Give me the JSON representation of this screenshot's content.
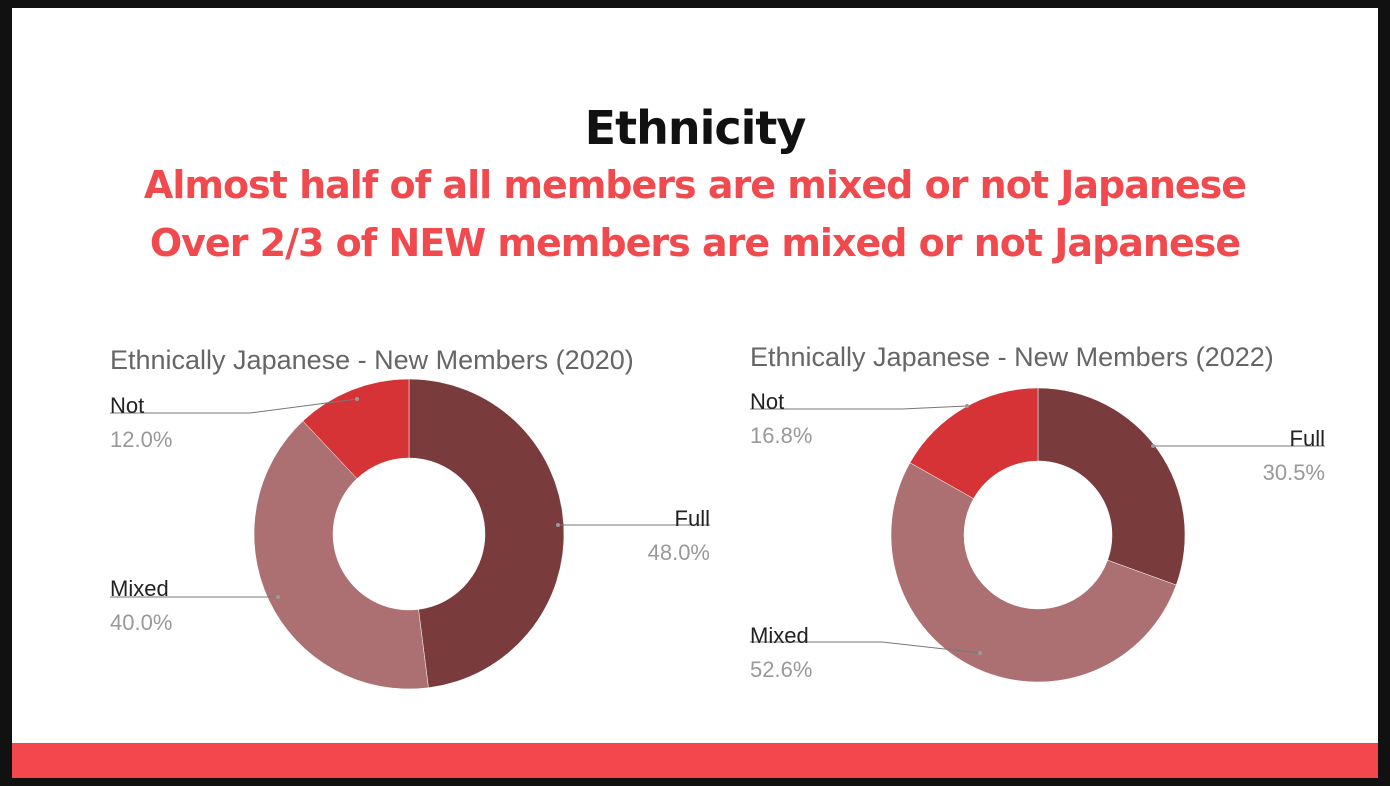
{
  "slide": {
    "title": "Ethnicity",
    "subtitle_lines": [
      "Almost half of all members are mixed or not Japanese",
      "Over 2/3 of NEW members are mixed or not Japanese"
    ]
  },
  "colors": {
    "accent": "#f3474d",
    "subtitle": "#f04a4f",
    "full": "#7a3b3d",
    "mixed": "#ac7072",
    "not": "#d63337"
  },
  "chart_data": [
    {
      "type": "pie",
      "title": "Ethnically Japanese - New Members (2020)",
      "categories": [
        "Full",
        "Mixed",
        "Not"
      ],
      "values": [
        48.0,
        40.0,
        12.0
      ],
      "value_labels": [
        "48.0%",
        "40.0%",
        "12.0%"
      ],
      "donut": true,
      "legend": "none"
    },
    {
      "type": "pie",
      "title": "Ethnically Japanese - New Members (2022)",
      "categories": [
        "Full",
        "Mixed",
        "Not"
      ],
      "values": [
        30.5,
        52.6,
        16.8
      ],
      "value_labels": [
        "30.5%",
        "52.6%",
        "16.8%"
      ],
      "donut": true,
      "legend": "none"
    }
  ]
}
